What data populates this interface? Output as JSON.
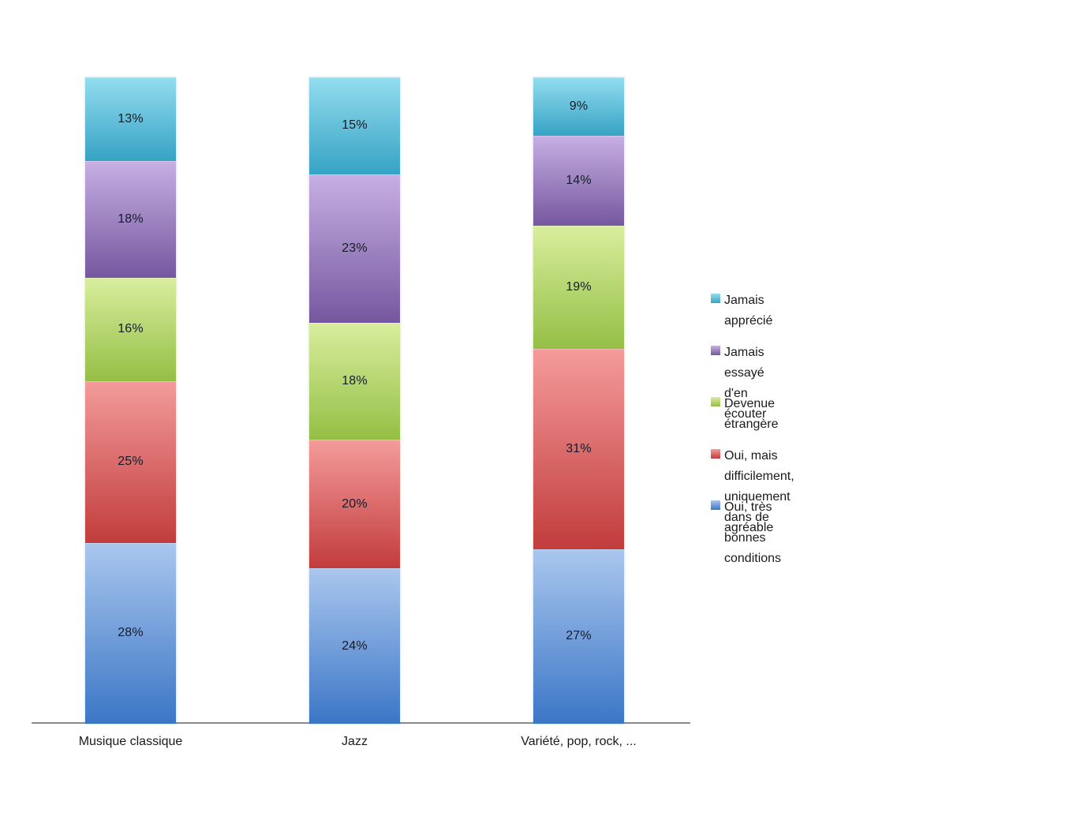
{
  "chart_data": {
    "type": "bar",
    "stacked": true,
    "orientation": "vertical",
    "unit": "%",
    "title": "",
    "xlabel": "",
    "ylabel": "",
    "ylim": [
      0,
      100
    ],
    "grid": false,
    "categories": [
      "Musique classique",
      "Jazz",
      "Variété, pop, rock, ..."
    ],
    "series": [
      {
        "name": "Oui, très agréable",
        "values": [
          28,
          24,
          27
        ],
        "color": "#4F81BD",
        "gradient_top": "#aac7ee",
        "gradient_bottom": "#3b76c6"
      },
      {
        "name": "Oui, mais difficilement, uniquement dans de bonnes conditions",
        "values": [
          25,
          20,
          31
        ],
        "color": "#C0504D",
        "gradient_top": "#f49b9b",
        "gradient_bottom": "#c23c3c"
      },
      {
        "name": "Devenue étrangère",
        "values": [
          16,
          18,
          19
        ],
        "color": "#9BBB59",
        "gradient_top": "#d9ee9e",
        "gradient_bottom": "#94bf45"
      },
      {
        "name": "Jamais essayé d'en écouter",
        "values": [
          18,
          23,
          14
        ],
        "color": "#8064A2",
        "gradient_top": "#c7b0e3",
        "gradient_bottom": "#75579f"
      },
      {
        "name": "Jamais apprécié",
        "values": [
          13,
          15,
          9
        ],
        "color": "#4BACC6",
        "gradient_top": "#93ddef",
        "gradient_bottom": "#36a3c4"
      }
    ],
    "data_labels": {
      "visible": true,
      "format": "{value}%",
      "color": "#141b29"
    },
    "legend": {
      "position": "right",
      "order": "top-to-bottom reverse of stack"
    },
    "axis": {
      "line_color": "#8a8a8a",
      "category_label_color": "#1a1a1a"
    }
  }
}
